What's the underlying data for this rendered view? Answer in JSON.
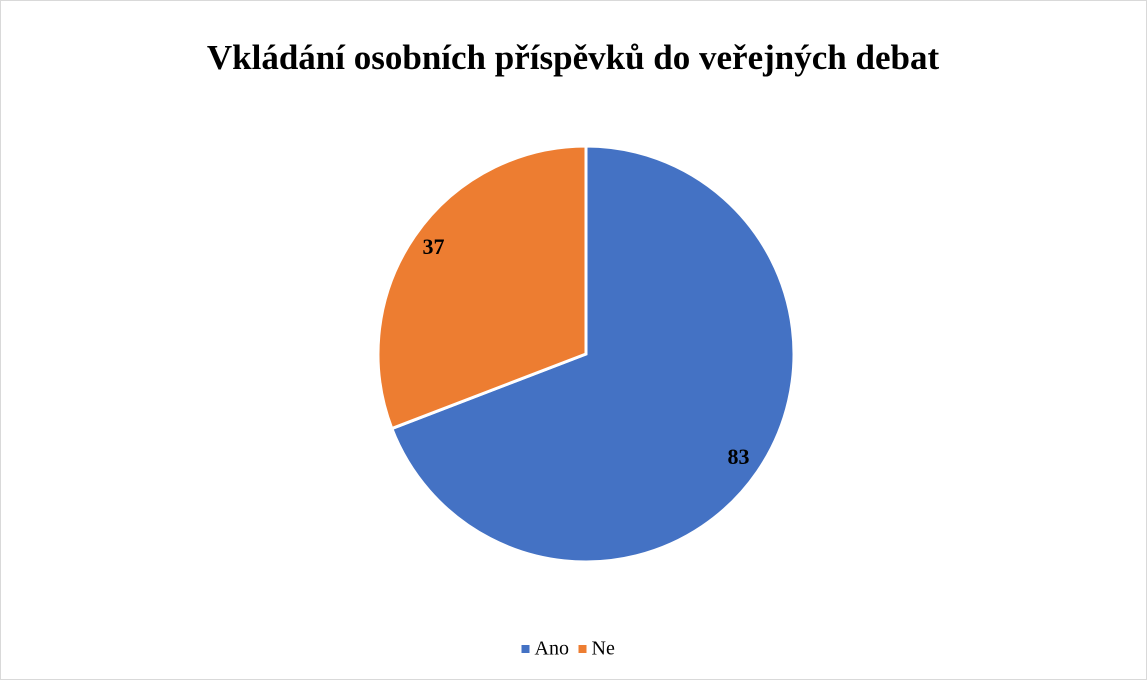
{
  "chart_data": {
    "type": "pie",
    "title": "Vkládání osobních příspěvků do veřejných debat",
    "categories": [
      "Ano",
      "Ne"
    ],
    "values": [
      83,
      37
    ],
    "colors": [
      "#4472c4",
      "#ed7d31"
    ],
    "legend": "bottom"
  }
}
